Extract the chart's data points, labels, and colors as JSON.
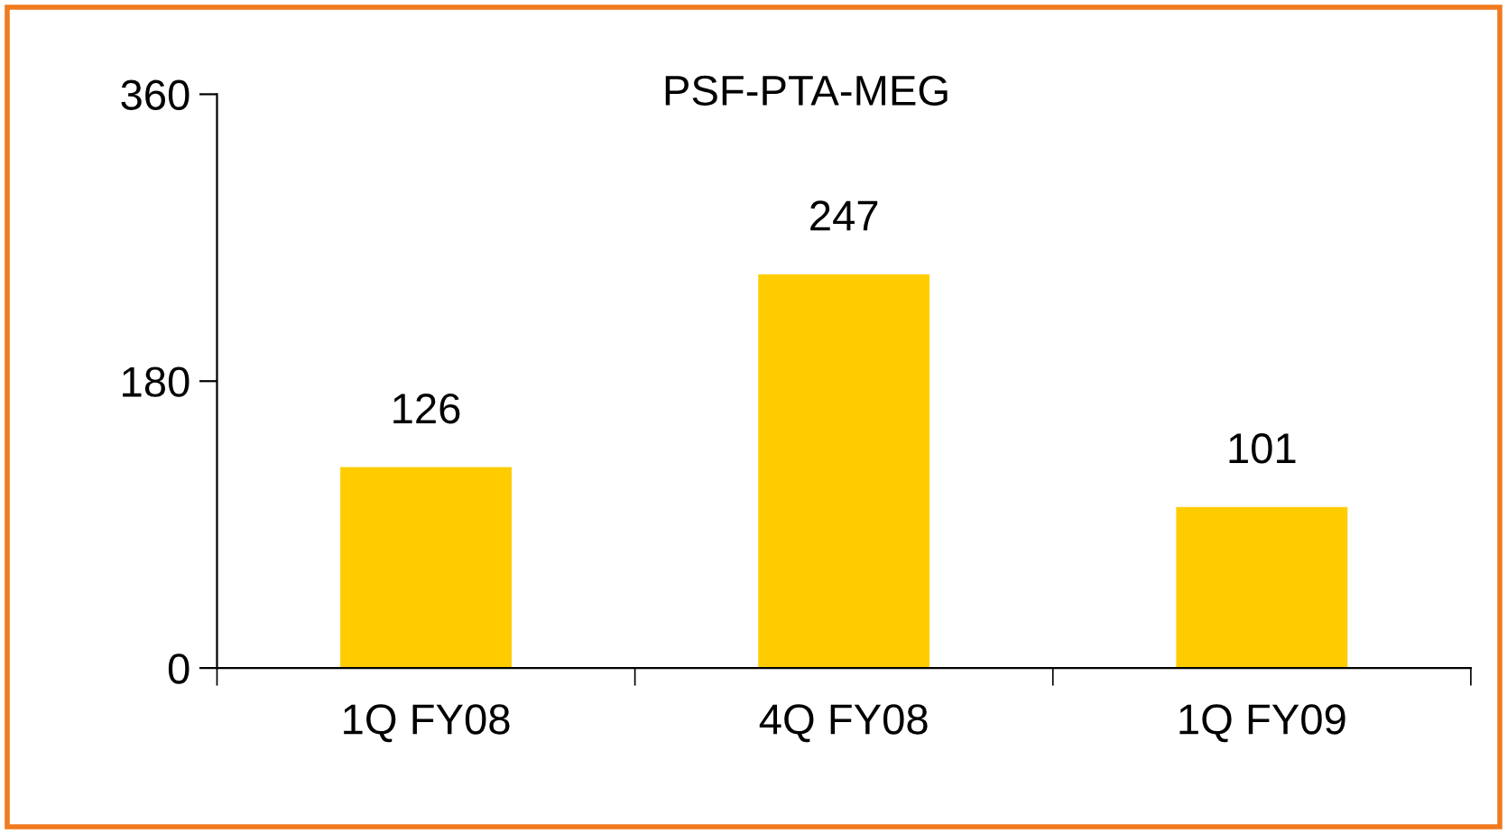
{
  "chart_data": {
    "type": "bar",
    "title": "PSF-PTA-MEG",
    "categories": [
      "1Q FY08",
      "4Q FY08",
      "1Q FY09"
    ],
    "values": [
      126,
      247,
      101
    ],
    "color": "#ffcc00",
    "ylim": [
      0,
      360
    ],
    "yticks": [
      0,
      180,
      360
    ],
    "grid": false,
    "legend": false,
    "data_labels": true
  }
}
